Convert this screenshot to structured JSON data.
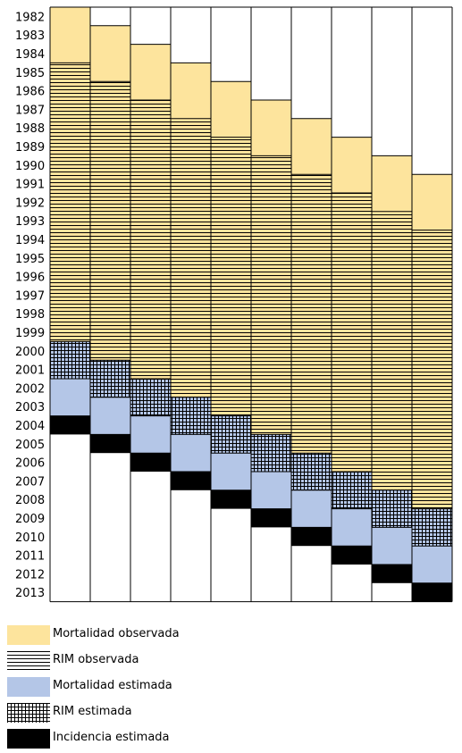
{
  "years": [
    "1982",
    "1983",
    "1984",
    "1985",
    "1986",
    "1987",
    "1988",
    "1989",
    "1990",
    "1991",
    "1992",
    "1993",
    "1994",
    "1995",
    "1996",
    "1997",
    "1998",
    "1999",
    "2000",
    "2001",
    "2002",
    "2003",
    "2004",
    "2005",
    "2006",
    "2007",
    "2008",
    "2009",
    "2010",
    "2011",
    "2012",
    "2013"
  ],
  "colors": {
    "mortalidad_observada": "#fde49d",
    "mortalidad_estimada": "#b4c6e7",
    "incidencia_estimada": "#000000",
    "lines": "#000000"
  },
  "columns": [
    {
      "mortalidad_observada": [
        1982,
        1984
      ],
      "rim_observada": [
        1985,
        1999
      ],
      "rim_estimada": [
        2000,
        2001
      ],
      "mortalidad_estimada": [
        2002,
        2003
      ],
      "incidencia_estimada": [
        2004,
        2004
      ]
    },
    {
      "mortalidad_observada": [
        1983,
        1985
      ],
      "rim_observada": [
        1986,
        2000
      ],
      "rim_estimada": [
        2001,
        2002
      ],
      "mortalidad_estimada": [
        2003,
        2004
      ],
      "incidencia_estimada": [
        2005,
        2005
      ]
    },
    {
      "mortalidad_observada": [
        1984,
        1986
      ],
      "rim_observada": [
        1987,
        2001
      ],
      "rim_estimada": [
        2002,
        2003
      ],
      "mortalidad_estimada": [
        2004,
        2005
      ],
      "incidencia_estimada": [
        2006,
        2006
      ]
    },
    {
      "mortalidad_observada": [
        1985,
        1987
      ],
      "rim_observada": [
        1988,
        2002
      ],
      "rim_estimada": [
        2003,
        2004
      ],
      "mortalidad_estimada": [
        2005,
        2006
      ],
      "incidencia_estimada": [
        2007,
        2007
      ]
    },
    {
      "mortalidad_observada": [
        1986,
        1988
      ],
      "rim_observada": [
        1989,
        2003
      ],
      "rim_estimada": [
        2004,
        2005
      ],
      "mortalidad_estimada": [
        2006,
        2007
      ],
      "incidencia_estimada": [
        2008,
        2008
      ]
    },
    {
      "mortalidad_observada": [
        1987,
        1989
      ],
      "rim_observada": [
        1990,
        2004
      ],
      "rim_estimada": [
        2005,
        2006
      ],
      "mortalidad_estimada": [
        2007,
        2008
      ],
      "incidencia_estimada": [
        2009,
        2009
      ]
    },
    {
      "mortalidad_observada": [
        1988,
        1990
      ],
      "rim_observada": [
        1991,
        2005
      ],
      "rim_estimada": [
        2006,
        2007
      ],
      "mortalidad_estimada": [
        2008,
        2009
      ],
      "incidencia_estimada": [
        2010,
        2010
      ]
    },
    {
      "mortalidad_observada": [
        1989,
        1991
      ],
      "rim_observada": [
        1992,
        2006
      ],
      "rim_estimada": [
        2007,
        2008
      ],
      "mortalidad_estimada": [
        2009,
        2010
      ],
      "incidencia_estimada": [
        2011,
        2011
      ]
    },
    {
      "mortalidad_observada": [
        1990,
        1992
      ],
      "rim_observada": [
        1993,
        2007
      ],
      "rim_estimada": [
        2008,
        2009
      ],
      "mortalidad_estimada": [
        2010,
        2011
      ],
      "incidencia_estimada": [
        2012,
        2012
      ]
    },
    {
      "mortalidad_observada": [
        1991,
        1993
      ],
      "rim_observada": [
        1994,
        2008
      ],
      "rim_estimada": [
        2009,
        2010
      ],
      "mortalidad_estimada": [
        2011,
        2012
      ],
      "incidencia_estimada": [
        2013,
        2013
      ]
    }
  ],
  "legend": [
    {
      "key": "mortalidad_observada",
      "label": "Mortalidad observada"
    },
    {
      "key": "rim_observada",
      "label": "RIM observada"
    },
    {
      "key": "mortalidad_estimada",
      "label": "Mortalidad estimada"
    },
    {
      "key": "rim_estimada",
      "label": "RIM estimada"
    },
    {
      "key": "incidencia_estimada",
      "label": "Incidencia estimada"
    }
  ]
}
